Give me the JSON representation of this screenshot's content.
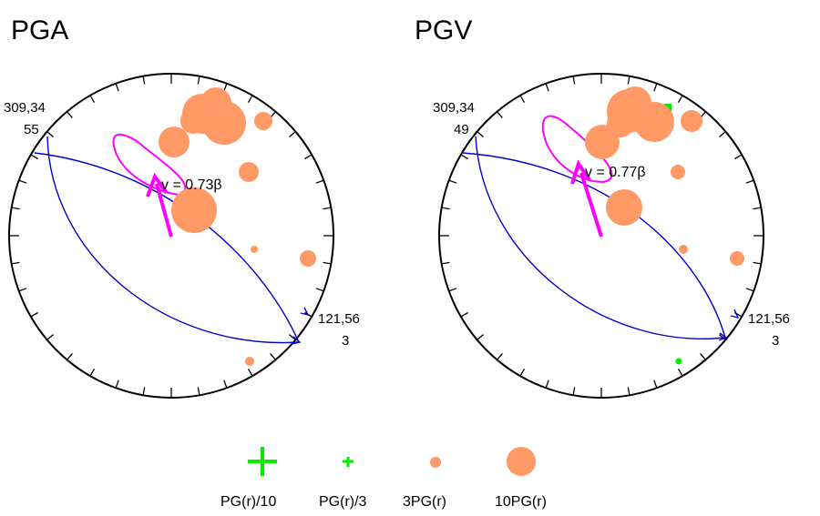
{
  "colors": {
    "frame": "#000000",
    "plane": "#0000cc",
    "ellipse": "#ff00ff",
    "arrow": "#ff00ff",
    "positive": "#ff9966",
    "negative": "#00ee00"
  },
  "panels": [
    {
      "title": "PGA",
      "label_a_line1": "309,34",
      "label_a_line2": "55",
      "label_b_line1": "121,56",
      "label_b_line2": "3",
      "velocity_label": "v = 0.73β"
    },
    {
      "title": "PGV",
      "label_a_line1": "309,34",
      "label_a_line2": "49",
      "label_b_line1": "121,56",
      "label_b_line2": "3",
      "velocity_label": "v = 0.77β"
    }
  ],
  "legend": [
    {
      "label": "PG(r)/10",
      "symbol": "plus-large"
    },
    {
      "label": "PG(r)/3",
      "symbol": "plus-small"
    },
    {
      "label": "3PG(r)",
      "symbol": "circle-small"
    },
    {
      "label": "10PG(r)",
      "symbol": "circle-large"
    }
  ]
}
